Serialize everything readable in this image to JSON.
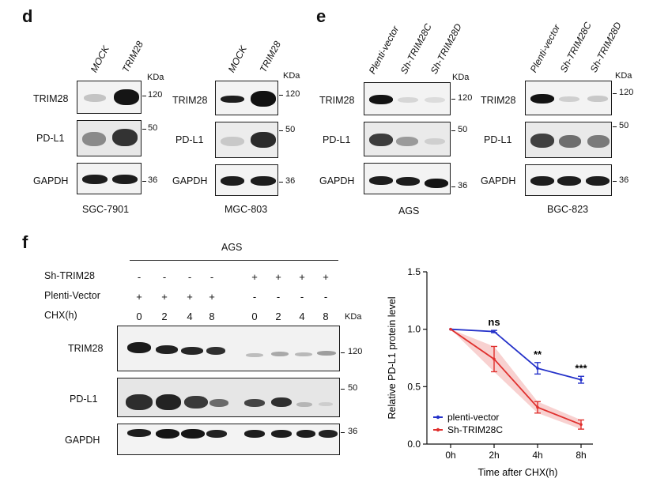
{
  "panel_d": {
    "letter": "d",
    "left": {
      "lanes": [
        "MOCK",
        "TRIM28"
      ],
      "kda": "KDa",
      "rows": [
        "TRIM28",
        "PD-L1",
        "GAPDH"
      ],
      "markers": [
        "120",
        "50",
        "36"
      ],
      "cell_line": "SGC-7901"
    },
    "right": {
      "lanes": [
        "MOCK",
        "TRIM28"
      ],
      "kda": "KDa",
      "rows": [
        "TRIM28",
        "PD-L1",
        "GAPDH"
      ],
      "markers": [
        "120",
        "50",
        "36"
      ],
      "cell_line": "MGC-803"
    }
  },
  "panel_e": {
    "letter": "e",
    "left": {
      "lanes": [
        "Plenti-vector",
        "Sh-TRIM28C",
        "Sh-TRIM28D"
      ],
      "kda": "KDa",
      "rows": [
        "TRIM28",
        "PD-L1",
        "GAPDH"
      ],
      "markers": [
        "120",
        "50",
        "36"
      ],
      "cell_line": "AGS"
    },
    "right": {
      "lanes": [
        "Plenti-vector",
        "Sh-TRIM28C",
        "Sh-TRIM28D"
      ],
      "kda": "KDa",
      "rows": [
        "TRIM28",
        "PD-L1",
        "GAPDH"
      ],
      "markers": [
        "120",
        "50",
        "36"
      ],
      "cell_line": "BGC-823"
    }
  },
  "panel_f": {
    "letter": "f",
    "cell_line": "AGS",
    "conditions": [
      {
        "label": "Sh-TRIM28",
        "values": [
          "-",
          "-",
          "-",
          "-",
          "+",
          "+",
          "+",
          "+"
        ]
      },
      {
        "label": "Plenti-Vector",
        "values": [
          "+",
          "+",
          "+",
          "+",
          "-",
          "-",
          "-",
          "-"
        ]
      },
      {
        "label": "CHX(h)",
        "values": [
          "0",
          "2",
          "4",
          "8",
          "0",
          "2",
          "4",
          "8"
        ]
      }
    ],
    "kda": "KDa",
    "rows": [
      "TRIM28",
      "PD-L1",
      "GAPDH"
    ],
    "markers": [
      "120",
      "50",
      "36"
    ]
  },
  "chart_data": {
    "type": "line",
    "x": [
      "0h",
      "2h",
      "4h",
      "8h"
    ],
    "xlabel": "Time after CHX(h)",
    "ylabel": "Relative PD-L1  protein  level",
    "ylim": [
      0.0,
      1.5
    ],
    "yticks": [
      "0.0",
      "0.5",
      "1.0",
      "1.5"
    ],
    "grid": false,
    "legend": "bottom-left",
    "series": [
      {
        "name": "plenti-vector",
        "color": "#2431c9",
        "values": [
          1.0,
          0.98,
          0.66,
          0.56
        ],
        "errors": [
          0.0,
          0.01,
          0.05,
          0.03
        ]
      },
      {
        "name": "Sh-TRIM28C",
        "color": "#e0302e",
        "values": [
          1.0,
          0.74,
          0.32,
          0.17
        ],
        "errors": [
          0.0,
          0.11,
          0.05,
          0.04
        ]
      }
    ],
    "annotations": [
      "ns",
      "**",
      "***"
    ]
  }
}
